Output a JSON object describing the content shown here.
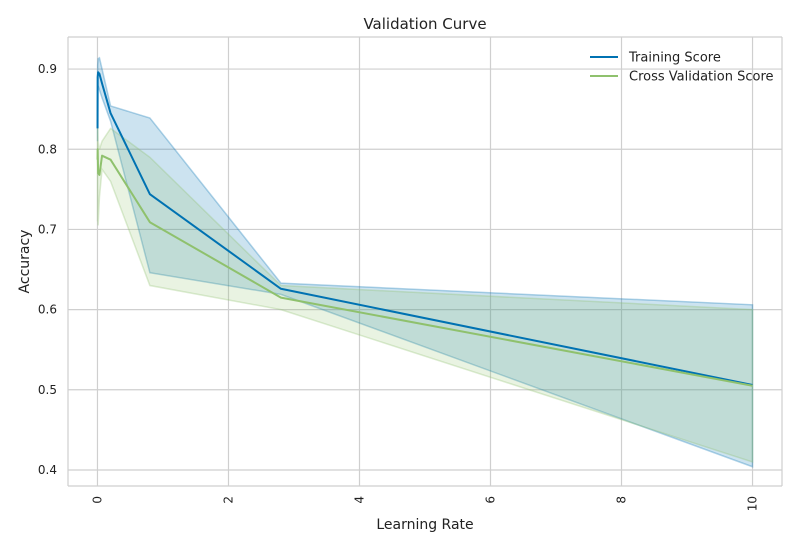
{
  "chart_data": {
    "type": "line",
    "title": "Validation Curve",
    "xlabel": "Learning Rate",
    "ylabel": "Accuracy",
    "xlim": [
      -0.45,
      10.45
    ],
    "ylim": [
      0.38,
      0.94
    ],
    "xticks": [
      0,
      2,
      4,
      6,
      8,
      10
    ],
    "xtick_labels": [
      "0",
      "2",
      "4",
      "6",
      "8",
      "10"
    ],
    "yticks": [
      0.4,
      0.5,
      0.6,
      0.7,
      0.8,
      0.9
    ],
    "ytick_labels": [
      "0.4",
      "0.5",
      "0.6",
      "0.7",
      "0.8",
      "0.9"
    ],
    "x_tick_rotation": "vertical",
    "grid": true,
    "legend_location": "upper-right",
    "series": [
      {
        "name": "Training Score",
        "color": "#0072B2",
        "x": [
          0.001,
          0.003,
          0.01,
          0.03,
          0.07,
          0.2,
          0.8,
          2.8,
          10.0
        ],
        "values": [
          0.826,
          0.89,
          0.896,
          0.894,
          0.882,
          0.845,
          0.744,
          0.626,
          0.506
        ],
        "band_upper": [
          0.84,
          0.905,
          0.913,
          0.914,
          0.9,
          0.854,
          0.839,
          0.633,
          0.606
        ],
        "band_lower": [
          0.81,
          0.875,
          0.879,
          0.874,
          0.864,
          0.835,
          0.646,
          0.619,
          0.404
        ]
      },
      {
        "name": "Cross Validation Score",
        "color": "#8FC16D",
        "x": [
          0.001,
          0.003,
          0.01,
          0.03,
          0.07,
          0.2,
          0.8,
          2.8,
          10.0
        ],
        "values": [
          0.787,
          0.8,
          0.77,
          0.768,
          0.792,
          0.787,
          0.709,
          0.615,
          0.505
        ],
        "band_upper": [
          0.82,
          0.835,
          0.81,
          0.8,
          0.81,
          0.826,
          0.79,
          0.63,
          0.6
        ],
        "band_lower": [
          0.71,
          0.75,
          0.705,
          0.74,
          0.775,
          0.76,
          0.63,
          0.6,
          0.41
        ]
      }
    ]
  }
}
